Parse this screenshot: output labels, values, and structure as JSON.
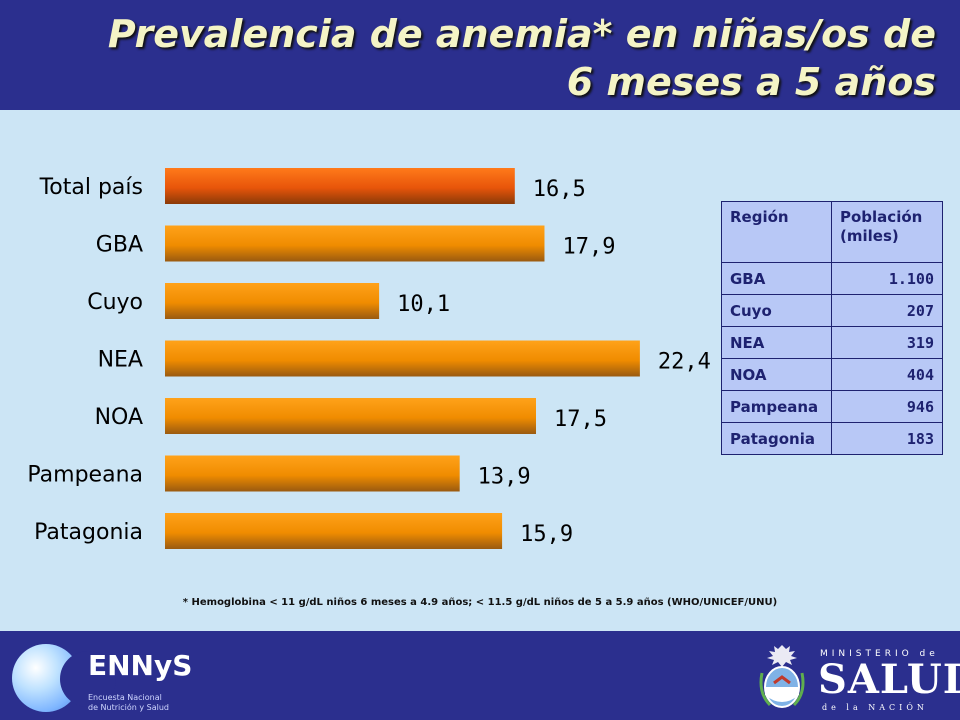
{
  "title_line1": "Prevalencia de anemia* en niñas/os de",
  "title_line2": "6 meses a 5 años",
  "chart_data": {
    "type": "bar",
    "orientation": "horizontal",
    "categories": [
      "Total país",
      "GBA",
      "Cuyo",
      "NEA",
      "NOA",
      "Pampeana",
      "Patagonia"
    ],
    "values": [
      16.5,
      17.9,
      10.1,
      22.4,
      17.5,
      13.9,
      15.9
    ],
    "value_labels": [
      "16,5",
      "17,9",
      "10,1",
      "22,4",
      "17,5",
      "13,9",
      "15,9"
    ],
    "title": "Prevalencia de anemia* en niñas/os de 6 meses a 5 años",
    "xlabel": "",
    "ylabel": "",
    "xlim": [
      0,
      25
    ],
    "grid": false,
    "colors": {
      "highlight": "#e8550a",
      "bar": "#f08c00"
    }
  },
  "table": {
    "headers": [
      "Región",
      "Población (miles)"
    ],
    "rows": [
      [
        "GBA",
        "1.100"
      ],
      [
        "Cuyo",
        "207"
      ],
      [
        "NEA",
        "319"
      ],
      [
        "NOA",
        "404"
      ],
      [
        "Pampeana",
        "946"
      ],
      [
        "Patagonia",
        "183"
      ]
    ]
  },
  "footnote": "* Hemoglobina  < 11 g/dL niños 6 meses a 4.9 años; < 11.5 g/dL niños de 5 a 5.9 años  (WHO/UNICEF/UNU)",
  "footer": {
    "left_logo": {
      "name": "ENNyS",
      "subtitle_line1": "Encuesta Nacional",
      "subtitle_line2": "de Nutrición y Salud"
    },
    "right_logo": {
      "top": "MINISTERIO de",
      "main": "SALUD",
      "bottom": "de la NACIÓN"
    }
  }
}
